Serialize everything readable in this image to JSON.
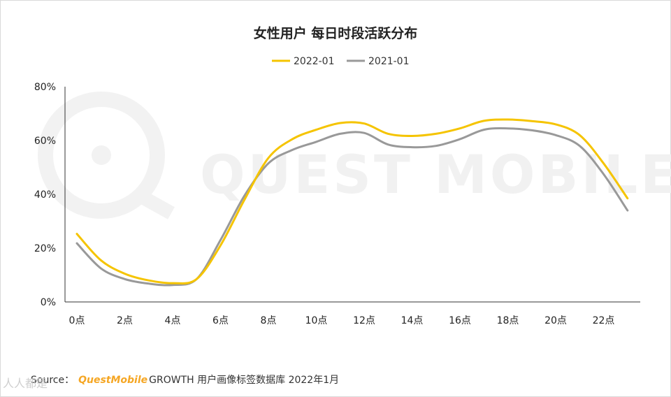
{
  "title": "女性用户 每日时段活跃分布",
  "source": {
    "prefix": "Source：",
    "brand": "QuestMobile",
    "rest": "GROWTH 用户画像标签数据库 2022年1月"
  },
  "watermark": {
    "text": "QUEST MOBILE",
    "corner_text": "人人都是"
  },
  "chart_data": {
    "type": "line",
    "title": "女性用户 每日时段活跃分布",
    "x": [
      0,
      1,
      2,
      3,
      4,
      5,
      6,
      7,
      8,
      9,
      10,
      11,
      12,
      13,
      14,
      15,
      16,
      17,
      18,
      19,
      20,
      21,
      22,
      23
    ],
    "x_tick_labels": [
      "0点",
      "2点",
      "4点",
      "6点",
      "8点",
      "10点",
      "12点",
      "14点",
      "16点",
      "18点",
      "20点",
      "22点"
    ],
    "x_tick_values": [
      0,
      2,
      4,
      6,
      8,
      10,
      12,
      14,
      16,
      18,
      20,
      22
    ],
    "y_tick_labels": [
      "0%",
      "20%",
      "40%",
      "60%",
      "80%"
    ],
    "y_tick_values": [
      0,
      20,
      40,
      60,
      80
    ],
    "ylim": [
      0,
      80
    ],
    "xlim": [
      0,
      23
    ],
    "grid": false,
    "legend_position": "top-center",
    "series": [
      {
        "name": "2022-01",
        "color": "#f5c400",
        "values": [
          25.3,
          15.5,
          10.5,
          8.0,
          7.0,
          8.5,
          21.0,
          38.0,
          53.5,
          60.5,
          64.0,
          66.5,
          66.3,
          62.5,
          61.7,
          62.5,
          64.5,
          67.3,
          67.8,
          67.2,
          66.0,
          62.0,
          51.5,
          38.5
        ]
      },
      {
        "name": "2021-01",
        "color": "#999999",
        "values": [
          21.8,
          12.5,
          8.5,
          6.8,
          6.3,
          8.5,
          23.0,
          39.5,
          51.5,
          56.5,
          59.5,
          62.5,
          62.8,
          58.5,
          57.5,
          58.0,
          60.5,
          64.0,
          64.5,
          63.8,
          62.0,
          58.0,
          47.5,
          34.0
        ]
      }
    ]
  }
}
